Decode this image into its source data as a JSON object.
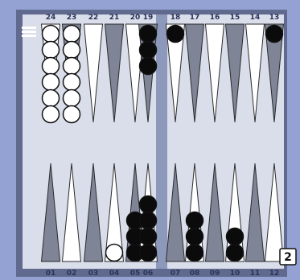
{
  "board": {
    "top_labels": [
      "24",
      "23",
      "22",
      "21",
      "20",
      "19",
      "18",
      "17",
      "16",
      "15",
      "14",
      "13"
    ],
    "bottom_labels": [
      "01",
      "02",
      "03",
      "04",
      "05",
      "06",
      "07",
      "08",
      "09",
      "10",
      "11",
      "12"
    ],
    "doubling_cube": "2",
    "colors": {
      "background": "#93a2d3",
      "board_face": "#d9deea",
      "frame": "#606a8f",
      "dark_point": "#7f8596",
      "light_point": "#ffffff",
      "black_checker": "#0b0b0b",
      "white_checker": "#ffffff"
    },
    "checkers": {
      "top_columns": [
        {
          "white": 6,
          "black": 0
        },
        {
          "white": 6,
          "black": 0
        },
        {
          "white": 0,
          "black": 0
        },
        {
          "white": 0,
          "black": 0
        },
        {
          "white": 0,
          "black": 0
        },
        {
          "white": 0,
          "black": 3
        },
        {
          "white": 0,
          "black": 1
        },
        {
          "white": 0,
          "black": 0
        },
        {
          "white": 0,
          "black": 0
        },
        {
          "white": 0,
          "black": 0
        },
        {
          "white": 0,
          "black": 0
        },
        {
          "white": 0,
          "black": 1
        }
      ],
      "bottom_columns": [
        {
          "white": 0,
          "black": 0
        },
        {
          "white": 0,
          "black": 0
        },
        {
          "white": 0,
          "black": 0
        },
        {
          "white": 1,
          "black": 0
        },
        {
          "white": 0,
          "black": 3
        },
        {
          "white": 0,
          "black": 4
        },
        {
          "white": 0,
          "black": 0
        },
        {
          "white": 0,
          "black": 3
        },
        {
          "white": 0,
          "black": 0
        },
        {
          "white": 0,
          "black": 2
        },
        {
          "white": 0,
          "black": 0
        },
        {
          "white": 0,
          "black": 0
        }
      ]
    }
  }
}
